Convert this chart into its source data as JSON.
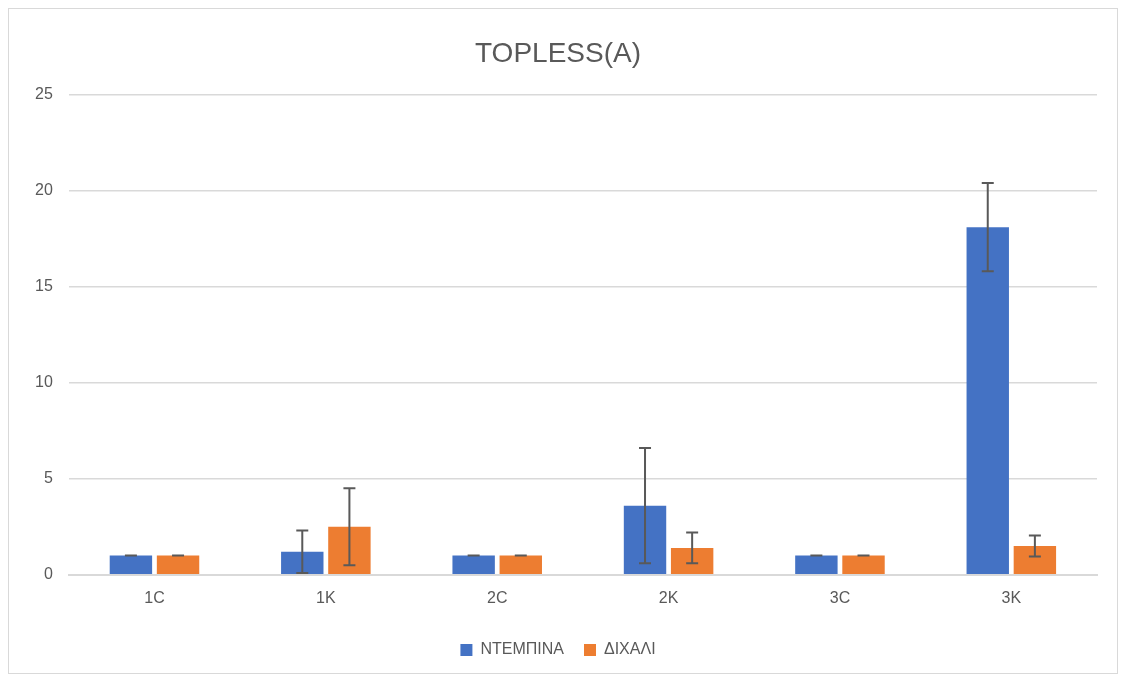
{
  "chart_data": {
    "type": "bar",
    "title": "TOPLESS(A)",
    "categories": [
      "1C",
      "1K",
      "2C",
      "2K",
      "3C",
      "3K"
    ],
    "series": [
      {
        "name": "ΝΤΕΜΠΙΝΑ",
        "color": "#4472c4",
        "values": [
          1,
          1.2,
          1,
          3.6,
          1,
          18.1
        ],
        "errors": [
          0,
          1.1,
          0,
          3.0,
          0,
          2.3
        ]
      },
      {
        "name": "ΔΙΧΑΛΙ",
        "color": "#ed7d31",
        "values": [
          1,
          2.5,
          1,
          1.4,
          1,
          1.5
        ],
        "errors": [
          0,
          2.0,
          0,
          0.8,
          0,
          0.55
        ]
      }
    ],
    "ylim": [
      0,
      25
    ],
    "yticks": [
      0,
      5,
      10,
      15,
      20,
      25
    ],
    "grid": "y",
    "legend": "bottom"
  }
}
